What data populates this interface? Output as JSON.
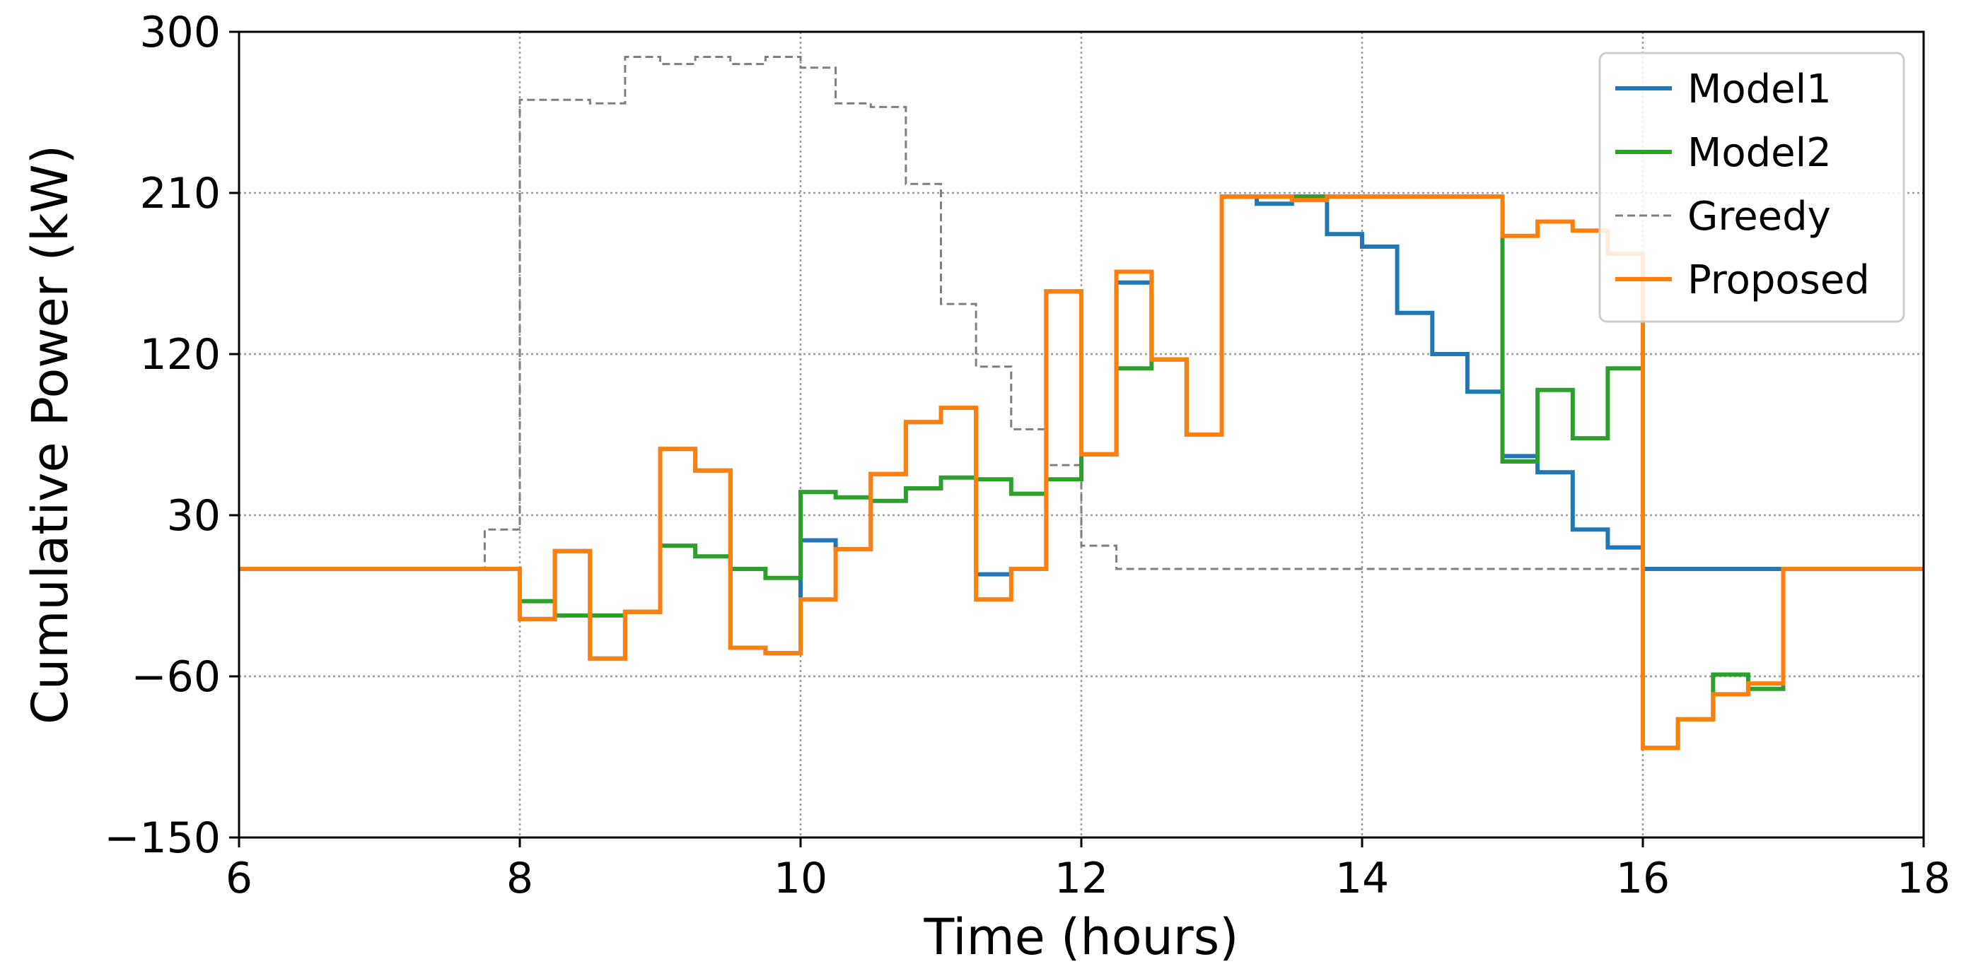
{
  "chart_data": {
    "type": "line",
    "title": "",
    "xlabel": "Time (hours)",
    "ylabel": "Cumulative Power (kW)",
    "xlim": [
      6,
      18
    ],
    "ylim": [
      -150,
      300
    ],
    "xticks": [
      6,
      8,
      10,
      12,
      14,
      16,
      18
    ],
    "yticks": [
      -150,
      -60,
      30,
      120,
      210,
      300
    ],
    "xtick_labels": [
      "6",
      "8",
      "10",
      "12",
      "14",
      "16",
      "18"
    ],
    "ytick_labels": [
      "−150",
      "−60",
      "30",
      "120",
      "210",
      "300"
    ],
    "grid": true,
    "legend_position": "upper right",
    "step": "post",
    "x": [
      6.0,
      6.25,
      6.5,
      6.75,
      7.0,
      7.25,
      7.5,
      7.75,
      8.0,
      8.25,
      8.5,
      8.75,
      9.0,
      9.25,
      9.5,
      9.75,
      10.0,
      10.25,
      10.5,
      10.75,
      11.0,
      11.25,
      11.5,
      11.75,
      12.0,
      12.25,
      12.5,
      12.75,
      13.0,
      13.25,
      13.5,
      13.75,
      14.0,
      14.25,
      14.5,
      14.75,
      15.0,
      15.25,
      15.5,
      15.75,
      16.0,
      16.25,
      16.5,
      16.75,
      17.0,
      17.25,
      17.5,
      17.75,
      18.0
    ],
    "series": [
      {
        "name": "Greedy",
        "color": "#7f7f7f",
        "style": "dashed",
        "values": [
          0,
          0,
          0,
          0,
          0,
          0,
          0,
          22,
          262,
          262,
          260,
          286,
          282,
          286,
          282,
          286,
          280,
          260,
          258,
          215,
          148,
          113,
          78,
          58,
          13,
          0,
          0,
          0,
          0,
          0,
          0,
          0,
          0,
          0,
          0,
          0,
          0,
          0,
          0,
          0,
          0,
          0,
          0,
          0,
          0,
          0,
          0,
          0,
          0
        ]
      },
      {
        "name": "Model1",
        "color": "#1f77b4",
        "style": "solid",
        "values": [
          0,
          0,
          0,
          0,
          0,
          0,
          0,
          0,
          -28,
          10,
          -50,
          -24,
          67,
          55,
          -44,
          -47,
          16,
          11,
          53,
          82,
          90,
          -3,
          0,
          155,
          64,
          160,
          117,
          75,
          208,
          204,
          208,
          187,
          180,
          143,
          120,
          99,
          63,
          54,
          22,
          12,
          0,
          0,
          0,
          0,
          0,
          0,
          0,
          0,
          0
        ]
      },
      {
        "name": "Model2",
        "color": "#2ca02c",
        "style": "solid",
        "values": [
          0,
          0,
          0,
          0,
          0,
          0,
          0,
          0,
          -18,
          -26,
          -26,
          -24,
          13,
          7,
          0,
          -5,
          43,
          40,
          38,
          45,
          51,
          50,
          42,
          50,
          64,
          112,
          117,
          75,
          208,
          208,
          208,
          208,
          208,
          208,
          208,
          208,
          60,
          100,
          73,
          112,
          -100,
          -84,
          -59,
          -67,
          0,
          0,
          0,
          0,
          0
        ]
      },
      {
        "name": "Proposed",
        "color": "#ff7f0e",
        "style": "solid",
        "values": [
          0,
          0,
          0,
          0,
          0,
          0,
          0,
          0,
          -28,
          10,
          -50,
          -24,
          67,
          55,
          -44,
          -47,
          -17,
          11,
          53,
          82,
          90,
          -17,
          0,
          155,
          64,
          166,
          117,
          75,
          208,
          208,
          206,
          208,
          208,
          208,
          208,
          208,
          186,
          194,
          189,
          176,
          -100,
          -84,
          -70,
          -64,
          0,
          0,
          0,
          0,
          0
        ]
      }
    ],
    "legend_order": [
      "Model1",
      "Model2",
      "Greedy",
      "Proposed"
    ]
  }
}
